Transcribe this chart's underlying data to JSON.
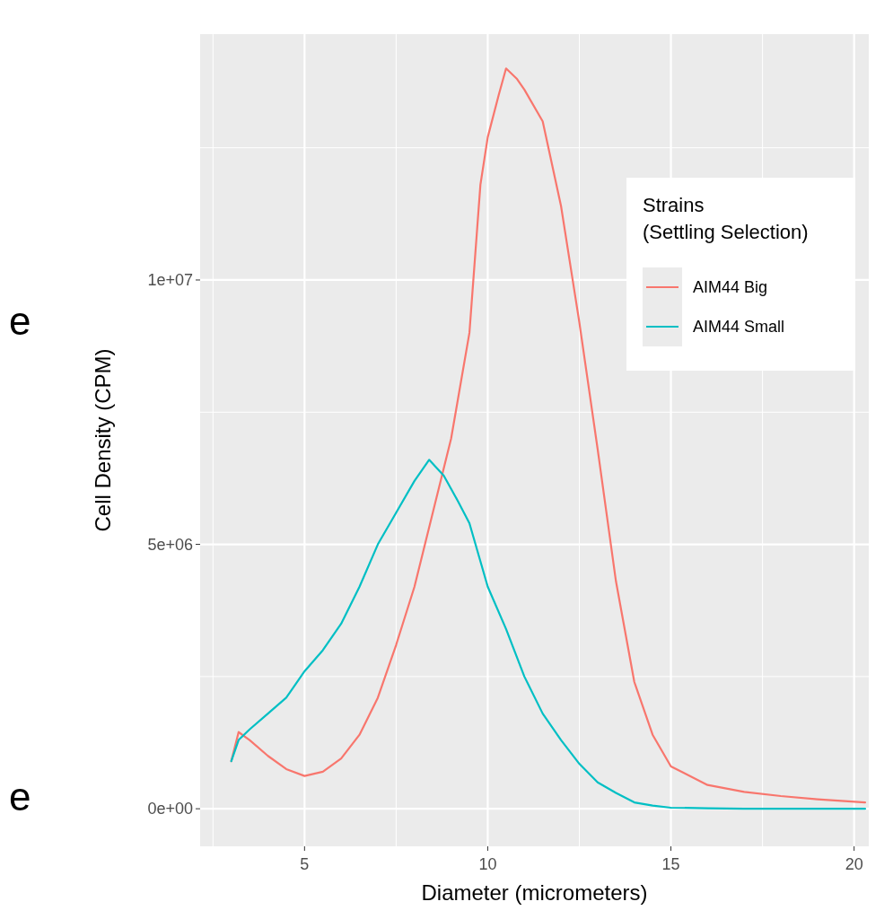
{
  "chart_data": {
    "type": "line",
    "xlabel": "Diameter (micrometers)",
    "ylabel": "Cell Density (CPM)",
    "legend_title": "Strains\n(Settling Selection)",
    "legend": "top right",
    "grid": true,
    "xlim": [
      2.15,
      20.4
    ],
    "ylim": [
      -710000,
      14650000
    ],
    "xticks": [
      5,
      10,
      15,
      20
    ],
    "yticks": [
      {
        "value": 0,
        "label": "0e+00"
      },
      {
        "value": 5000000,
        "label": "5e+06"
      },
      {
        "value": 10000000,
        "label": "1e+07"
      }
    ],
    "annotations": [
      "e",
      "e"
    ],
    "series": [
      {
        "name": "AIM44 Big",
        "color": "#f8766d",
        "x": [
          3,
          3.2,
          3.5,
          4,
          4.5,
          5,
          5.5,
          6,
          6.5,
          7,
          7.5,
          8,
          8.5,
          9,
          9.5,
          9.8,
          10,
          10.3,
          10.5,
          10.8,
          11,
          11.5,
          12,
          12.5,
          13,
          13.5,
          14,
          14.5,
          15,
          16,
          17,
          18,
          19,
          20.3
        ],
        "values": [
          900000,
          1450000,
          1300000,
          1000000,
          750000,
          620000,
          700000,
          950000,
          1400000,
          2100000,
          3100000,
          4200000,
          5600000,
          7000000,
          9000000,
          11800000,
          12700000,
          13500000,
          14000000,
          13800000,
          13600000,
          13000000,
          11400000,
          9200000,
          6800000,
          4300000,
          2400000,
          1400000,
          800000,
          450000,
          320000,
          240000,
          180000,
          120000
        ]
      },
      {
        "name": "AIM44 Small",
        "color": "#00bfc4",
        "x": [
          3,
          3.2,
          3.5,
          4,
          4.5,
          5,
          5.5,
          6,
          6.5,
          7,
          7.5,
          8,
          8.4,
          8.8,
          9.2,
          9.5,
          10,
          10.5,
          11,
          11.5,
          12,
          12.5,
          13,
          13.5,
          14,
          14.5,
          15,
          16,
          17,
          18,
          20.3
        ],
        "values": [
          900000,
          1300000,
          1500000,
          1800000,
          2100000,
          2600000,
          3000000,
          3500000,
          4200000,
          5000000,
          5600000,
          6200000,
          6600000,
          6300000,
          5800000,
          5400000,
          4200000,
          3400000,
          2500000,
          1800000,
          1300000,
          850000,
          500000,
          300000,
          120000,
          60000,
          20000,
          10000,
          0,
          0,
          0
        ]
      }
    ]
  }
}
